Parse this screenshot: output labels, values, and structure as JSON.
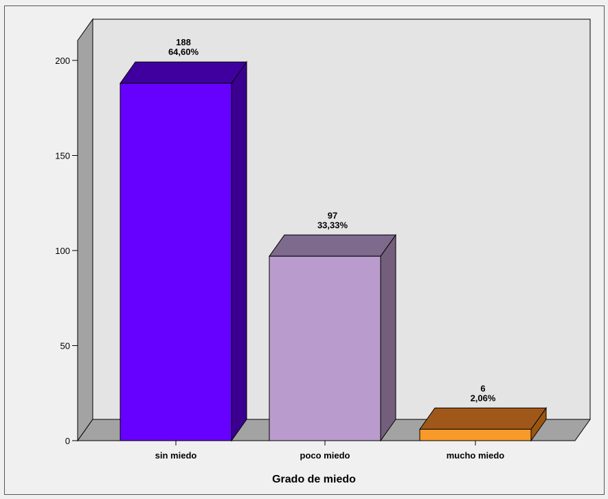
{
  "chart_data": {
    "type": "bar",
    "categories": [
      "sin miedo",
      "poco miedo",
      "mucho miedo"
    ],
    "values": [
      188,
      97,
      6
    ],
    "percent_labels": [
      "64,60%",
      "33,33%",
      "2,06%"
    ],
    "value_labels": [
      "188",
      "97",
      "6"
    ],
    "xlabel": "Grado de miedo",
    "ylabel": "",
    "ylim": [
      0,
      210
    ],
    "yticks": [
      0,
      50,
      100,
      150,
      200
    ],
    "ytick_labels": [
      "0",
      "50",
      "100",
      "150",
      "200"
    ],
    "grid": false,
    "legend": "none",
    "style": "3d",
    "colors": {
      "front": [
        "#6600ff",
        "#b99ccd",
        "#f79a2a"
      ],
      "side": [
        "#3b0090",
        "#735e7b",
        "#9a5611"
      ],
      "top": [
        "#4000a0",
        "#7e6a8c",
        "#a0581a"
      ],
      "back_wall": "#e4e4e4",
      "left_wall": "#a3a3a3",
      "floor": "#a3a3a3",
      "background": "#f0f0f0"
    }
  }
}
